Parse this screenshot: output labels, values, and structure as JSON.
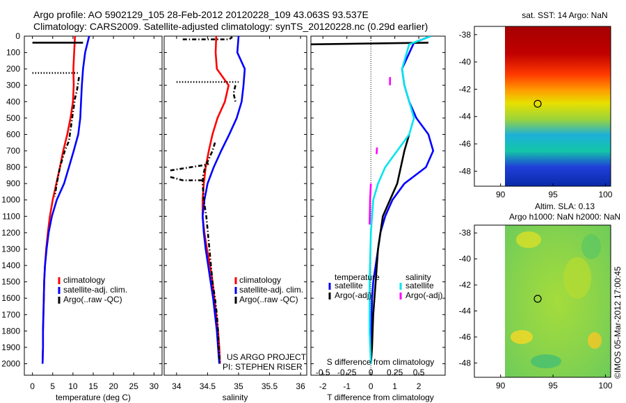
{
  "title_line1": "Argo profile: AO 5902129_105 28-Feb-2012 20120228_109 43.063S 93.537E",
  "title_line2": "Climatology: CARS2009. Satellite-adjusted climatology: synTS_20120228.nc (0.29d earlier)",
  "side_stamp": "©IMOS 05-Mar-2012 17:00:45",
  "colors": {
    "climatology": "#ff0000",
    "satellite": "#0000ff",
    "argo": "#000000",
    "sal_sat": "#00e5ee",
    "sal_argo": "#ff00ff"
  },
  "depth_ticks": [
    0,
    100,
    200,
    300,
    400,
    500,
    600,
    700,
    800,
    900,
    1000,
    1100,
    1200,
    1300,
    1400,
    1500,
    1600,
    1700,
    1800,
    1900,
    2000
  ],
  "panels": {
    "temperature": {
      "xlabel": "temperature (deg C)",
      "xlim": [
        -2,
        32
      ],
      "ylim": [
        0,
        2070
      ],
      "xticks": [
        "0",
        "5",
        "10",
        "15",
        "20",
        "25",
        "30"
      ],
      "legend": [
        "climatology",
        "satellite-adj. clim.",
        "Argo(..raw -QC)"
      ]
    },
    "salinity": {
      "xlabel": "salinity",
      "xlim": [
        33.8,
        36.1
      ],
      "ylim": [
        0,
        2070
      ],
      "xticks": [
        "34",
        "34.5",
        "35",
        "35.5",
        "36"
      ],
      "legend": [
        "climatology",
        "satellite-adj. clim.",
        "Argo(..raw -QC)"
      ],
      "note_line1": "US ARGO PROJECT",
      "note_line2": "PI: STEPHEN RISER"
    },
    "difference": {
      "xlabel": "T difference from climatology",
      "xlabel_top": "S difference from climatology",
      "xlim": [
        -2.5,
        3.1
      ],
      "ylim": [
        0,
        2070
      ],
      "xticks": [
        "-2",
        "-1",
        "0",
        "1",
        "2"
      ],
      "xticks_top": [
        "-0.5",
        "-0.25",
        "0",
        "0.25",
        "0.5"
      ],
      "legend_temp_title": "temperature",
      "legend_sal_title": "salinity",
      "legend_temp": [
        "satellite",
        "Argo(-adj)"
      ],
      "legend_sal": [
        "satellite",
        "Argo(-adj)"
      ]
    }
  },
  "map_sst": {
    "title": "sat. SST: 14 Argo: NaN",
    "xticks": [
      "90",
      "95",
      "100"
    ],
    "yticks": [
      "-38",
      "-40",
      "-42",
      "-44",
      "-46",
      "-48"
    ],
    "xlim": [
      87.5,
      100.5
    ],
    "ylim": [
      -49.1,
      -37.4
    ],
    "argo_pos": [
      93.537,
      -43.063
    ]
  },
  "map_sla": {
    "title_line1": "Altim. SLA: 0.13",
    "title_line2": "Argo h1000: NaN h2000: NaN",
    "xticks": [
      "90",
      "95",
      "100"
    ],
    "yticks": [
      "-38",
      "-40",
      "-42",
      "-44",
      "-46",
      "-48"
    ],
    "xlim": [
      87.5,
      100.5
    ],
    "ylim": [
      -49.1,
      -37.4
    ],
    "argo_pos": [
      93.537,
      -43.063
    ]
  },
  "chart_data": [
    {
      "type": "line",
      "name": "temperature profile",
      "series": [
        {
          "name": "climatology",
          "style": "solid",
          "color": "#ff0000",
          "x": [
            10.5,
            10.3,
            10.1,
            10.2,
            10.0,
            9.4,
            8.6,
            7.6,
            6.8,
            5.9,
            5.0,
            4.3,
            3.8,
            3.4,
            3.1,
            2.9,
            2.8,
            2.7,
            2.6,
            2.6,
            2.5
          ],
          "y": [
            0,
            100,
            200,
            300,
            400,
            500,
            600,
            700,
            800,
            900,
            1000,
            1100,
            1200,
            1300,
            1400,
            1500,
            1600,
            1700,
            1800,
            1900,
            2000
          ]
        },
        {
          "name": "satellite-adj. clim.",
          "style": "solid",
          "color": "#0000ff",
          "x": [
            14.0,
            13.0,
            12.5,
            12.2,
            12.0,
            11.8,
            11.3,
            10.2,
            9.0,
            7.8,
            6.0,
            4.8,
            4.0,
            3.5,
            3.1,
            2.9,
            2.8,
            2.7,
            2.6,
            2.6,
            2.5
          ],
          "y": [
            0,
            100,
            200,
            300,
            400,
            500,
            600,
            700,
            800,
            900,
            1000,
            1100,
            1200,
            1300,
            1400,
            1500,
            1600,
            1700,
            1800,
            1900,
            2000
          ]
        },
        {
          "name": "Argo(..raw -QC)",
          "style": "solid",
          "color": "#000000",
          "x": [
            0,
            12.5
          ],
          "y": [
            40,
            40
          ]
        },
        {
          "name": "Argo(..raw -QC)",
          "style": "dotted",
          "color": "#000000",
          "x": [
            0,
            11.2
          ],
          "y": [
            225,
            225
          ]
        },
        {
          "name": "Argo(..raw -QC)",
          "style": "dashdot",
          "color": "#000000",
          "x": [
            11.5,
            11.3,
            11.0,
            10.5,
            9.0,
            8.0,
            6.8,
            6.0,
            5.5
          ],
          "y": [
            250,
            280,
            330,
            380,
            640,
            700,
            800,
            900,
            980
          ]
        }
      ]
    },
    {
      "type": "line",
      "name": "salinity profile",
      "series": [
        {
          "name": "climatology",
          "style": "solid",
          "color": "#ff0000",
          "x": [
            34.64,
            34.63,
            34.65,
            34.84,
            34.78,
            34.66,
            34.58,
            34.52,
            34.47,
            34.44,
            34.42,
            34.42,
            34.45,
            34.49,
            34.54,
            34.58,
            34.61,
            34.64,
            34.67,
            34.69,
            34.7
          ],
          "y": [
            0,
            100,
            200,
            300,
            400,
            500,
            600,
            700,
            800,
            900,
            1000,
            1100,
            1200,
            1300,
            1400,
            1500,
            1600,
            1700,
            1800,
            1900,
            2000
          ]
        },
        {
          "name": "satellite-adj. clim.",
          "style": "solid",
          "color": "#0000ff",
          "x": [
            35.0,
            34.98,
            35.1,
            35.08,
            35.05,
            34.97,
            34.85,
            34.72,
            34.6,
            34.5,
            34.45,
            34.42,
            34.44,
            34.47,
            34.51,
            34.55,
            34.59,
            34.62,
            34.65,
            34.67,
            34.69
          ],
          "y": [
            0,
            100,
            200,
            300,
            400,
            500,
            600,
            700,
            800,
            900,
            1000,
            1100,
            1200,
            1300,
            1400,
            1500,
            1600,
            1700,
            1800,
            1900,
            2000
          ]
        },
        {
          "name": "Argo(..raw -QC)",
          "style": "dashdot",
          "color": "#000000",
          "x": [
            34.1,
            34.85,
            34.9
          ],
          "y": [
            20,
            20,
            5
          ],
          "note": "near surface"
        },
        {
          "name": "Argo(..raw -QC)",
          "style": "dotted",
          "color": "#000000",
          "x": [
            34.0,
            35.0
          ],
          "y": [
            280,
            280
          ]
        },
        {
          "name": "Argo(..raw -QC)",
          "style": "dashdot",
          "color": "#000000",
          "x": [
            34.95,
            34.92,
            34.95
          ],
          "y": [
            300,
            350,
            400
          ]
        },
        {
          "name": "Argo(..raw -QC)",
          "style": "dashdot",
          "color": "#000000",
          "x": [
            34.62,
            34.58,
            34.52,
            34.46,
            34.43,
            34.42,
            34.44,
            34.48,
            34.53,
            34.58,
            34.62,
            34.65,
            34.67,
            34.68,
            34.69,
            34.7
          ],
          "y": [
            650,
            700,
            750,
            800,
            850,
            900,
            1000,
            1100,
            1300,
            1500,
            1600,
            1700,
            1800,
            1900,
            1950,
            2000
          ]
        },
        {
          "name": "Argo(..raw -QC)",
          "style": "dashdot",
          "color": "#000000",
          "x": [
            33.9,
            34.4,
            34.52
          ],
          "y": [
            820,
            790,
            780
          ]
        },
        {
          "name": "Argo(..raw -QC)",
          "style": "dashdot",
          "color": "#000000",
          "x": [
            33.9,
            34.1,
            34.42
          ],
          "y": [
            860,
            880,
            880
          ]
        }
      ]
    },
    {
      "type": "line",
      "name": "difference from climatology",
      "series": [
        {
          "name": "temperature satellite",
          "style": "solid",
          "color": "#0000ff",
          "x": [
            2.5,
            1.8,
            1.3,
            1.4,
            1.6,
            1.9,
            2.4,
            2.6,
            2.3,
            1.4,
            0.9,
            0.6,
            0.4,
            0.3,
            0.2,
            0.1,
            0.05,
            0.03,
            0.02,
            0.0
          ],
          "y": [
            0,
            40,
            200,
            300,
            400,
            500,
            600,
            700,
            800,
            900,
            1000,
            1100,
            1200,
            1300,
            1400,
            1500,
            1600,
            1700,
            1800,
            1900
          ]
        },
        {
          "name": "temperature Argo(-adj)",
          "style": "solid",
          "color": "#000000",
          "x": [
            -2.5,
            2.4
          ],
          "y": [
            50,
            40
          ]
        },
        {
          "name": "temperature Argo(-adj)",
          "style": "solid",
          "color": "#000000",
          "x": [
            1.6,
            1.4,
            1.1,
            0.8,
            0.5,
            0.3,
            0.2,
            0.1,
            0.05,
            0.0
          ],
          "y": [
            600,
            700,
            900,
            1000,
            1100,
            1300,
            1500,
            1700,
            1900,
            2000
          ]
        },
        {
          "name": "salinity satellite",
          "style": "solid",
          "color": "#00e5ee",
          "x": [
            2.5,
            1.6,
            1.3,
            1.4,
            1.6,
            1.8,
            1.6,
            1.1,
            0.6,
            0.3,
            0.1,
            0.0,
            -0.05,
            -0.05,
            0.0
          ],
          "y": [
            0,
            50,
            200,
            300,
            400,
            500,
            600,
            700,
            800,
            900,
            1000,
            1200,
            1500,
            1800,
            2000
          ]
        },
        {
          "name": "salinity Argo(-adj)",
          "style": "solid",
          "color": "#ff00ff",
          "x": [
            0.8,
            0.8
          ],
          "y": [
            250,
            300
          ]
        },
        {
          "name": "salinity Argo(-adj)",
          "style": "solid",
          "color": "#ff00ff",
          "x": [
            0.26,
            0.24
          ],
          "y": [
            680,
            720
          ]
        },
        {
          "name": "salinity Argo(-adj)",
          "style": "solid",
          "color": "#ff00ff",
          "x": [
            0.0,
            -0.03,
            -0.05
          ],
          "y": [
            900,
            1000,
            1150
          ]
        }
      ]
    }
  ]
}
